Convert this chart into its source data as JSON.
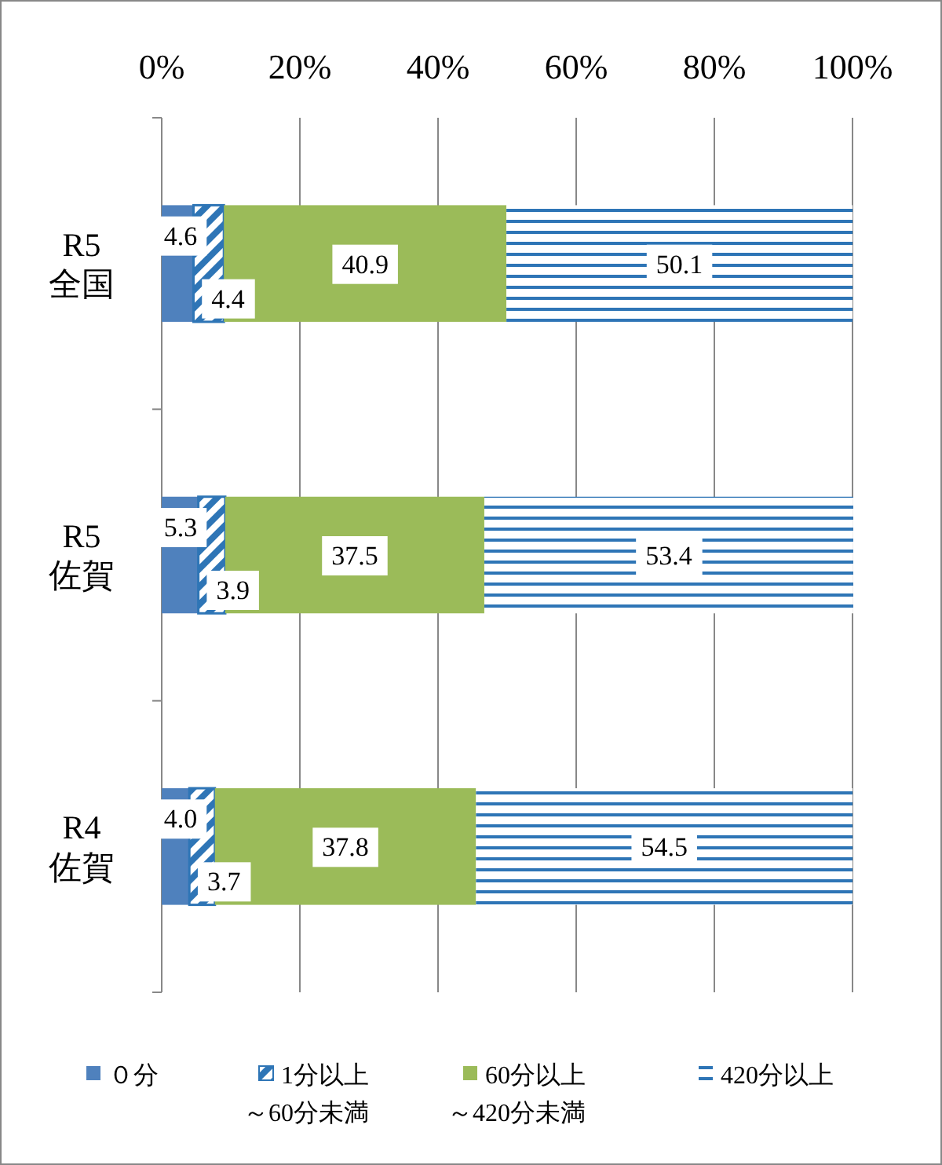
{
  "chart_data": {
    "type": "bar",
    "orientation": "horizontal",
    "stacked": true,
    "categories": [
      "R5\n全国",
      "R5\n佐賀",
      "R4\n佐賀"
    ],
    "series": [
      {
        "name": "０分",
        "color": "#4f81bd",
        "values": [
          4.6,
          5.3,
          4.0
        ],
        "value_labels": [
          "4.6",
          "5.3",
          "4.0"
        ]
      },
      {
        "name": "1分以上～60分未満",
        "color": "#2e75b6",
        "values": [
          4.4,
          3.9,
          3.7
        ]
      },
      {
        "name": "60分以上～420分未満",
        "color": "#9bbb59",
        "values": [
          40.9,
          37.5,
          37.8
        ]
      },
      {
        "name": "420分以上",
        "color": "#2e75b6",
        "values": [
          50.1,
          53.4,
          54.5
        ]
      }
    ],
    "xlim": [
      0,
      100
    ],
    "xticks": [
      {
        "value": 0,
        "label": "0%"
      },
      {
        "value": 20,
        "label": "20%"
      },
      {
        "value": 40,
        "label": "40%"
      },
      {
        "value": 60,
        "label": "60%"
      },
      {
        "value": 80,
        "label": "80%"
      },
      {
        "value": 100,
        "label": "100%"
      }
    ],
    "grid": "x",
    "legend": "bottom",
    "data_labels": true
  }
}
